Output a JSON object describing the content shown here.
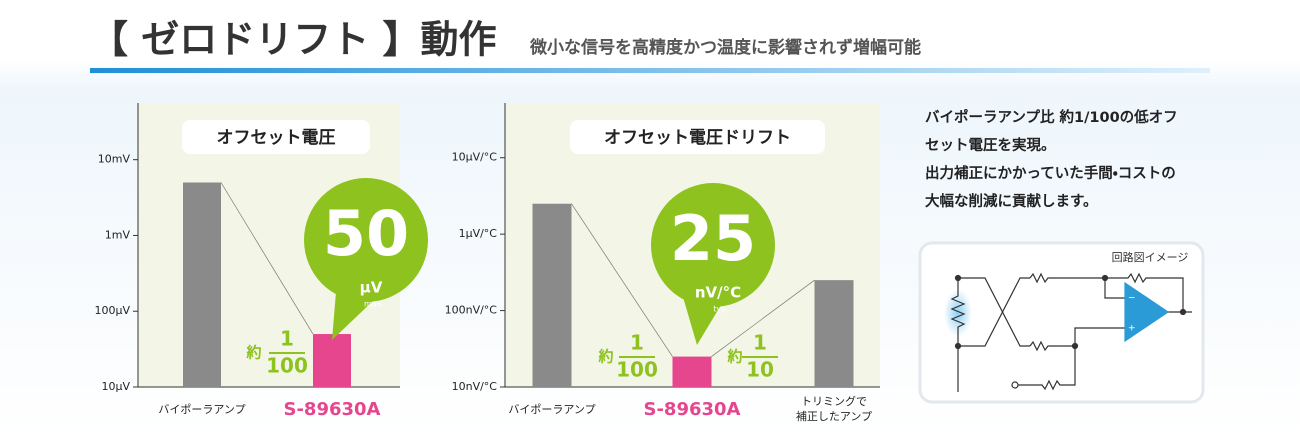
{
  "header": {
    "title": "【 ゼロドリフト 】動作",
    "subtitle": "微小な信号を高精度かつ温度に影響されず増幅可能"
  },
  "chart_data": [
    {
      "type": "bar",
      "title": "オフセット電圧",
      "log_scale": true,
      "categories": [
        "バイポーラアンプ",
        "S-89630A"
      ],
      "values": [
        5000,
        50
      ],
      "colors": [
        "#8a8a8a",
        "#e5468d"
      ],
      "highlight": 1,
      "ylim": [
        10,
        56000
      ],
      "yticks": [
        {
          "value": 10,
          "label": "10µV"
        },
        {
          "value": 100,
          "label": "100µV"
        },
        {
          "value": 1000,
          "label": "1mV"
        },
        {
          "value": 10000,
          "label": "10mV"
        }
      ],
      "bubble": {
        "value": 50,
        "unit": "µV",
        "note": "max."
      },
      "ratios": [
        {
          "prefix": "約",
          "numerator": "1",
          "denominator": "100"
        }
      ]
    },
    {
      "type": "bar",
      "title": "オフセット電圧ドリフト",
      "log_scale": true,
      "categories": [
        "バイポーラアンプ",
        "S-89630A",
        [
          "トリミングで",
          "補正したアンプ"
        ]
      ],
      "values": [
        2500,
        25,
        250
      ],
      "colors": [
        "#8a8a8a",
        "#e5468d",
        "#8a8a8a"
      ],
      "highlight": 1,
      "ylim": [
        10,
        52000
      ],
      "yticks": [
        {
          "value": 10,
          "label": "10nV/°C"
        },
        {
          "value": 100,
          "label": "100nV/°C"
        },
        {
          "value": 1000,
          "label": "1µV/°C"
        },
        {
          "value": 10000,
          "label": "10µV/°C"
        }
      ],
      "bubble": {
        "value": 25,
        "unit": "nV/°C",
        "note": "typ."
      },
      "ratios": [
        {
          "prefix": "約",
          "numerator": "1",
          "denominator": "100"
        },
        {
          "prefix": "約",
          "numerator": "1",
          "denominator": "10"
        }
      ]
    }
  ],
  "description": [
    "バイポーラアンプ比 約1/100の低オフ",
    "セット電圧を実現。",
    "出力補正にかかっていた手間・コストの",
    "大幅な削減に貢献します。"
  ],
  "circuit": {
    "label": "回路図イメージ"
  }
}
